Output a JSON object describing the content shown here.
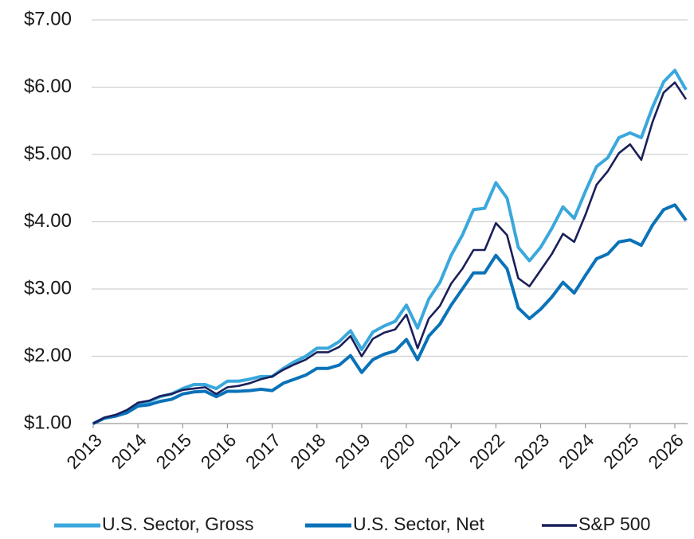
{
  "chart_data": {
    "type": "line",
    "x": [
      2013,
      2013.25,
      2013.5,
      2013.75,
      2014,
      2014.25,
      2014.5,
      2014.75,
      2015,
      2015.25,
      2015.5,
      2015.75,
      2016,
      2016.25,
      2016.5,
      2016.75,
      2017,
      2017.25,
      2017.5,
      2017.75,
      2018,
      2018.25,
      2018.5,
      2018.75,
      2019,
      2019.25,
      2019.5,
      2019.75,
      2020,
      2020.25,
      2020.5,
      2020.75,
      2021,
      2021.25,
      2021.5,
      2021.75,
      2022,
      2022.25,
      2022.5,
      2022.75,
      2023,
      2023.25,
      2023.5,
      2023.75,
      2024,
      2024.25,
      2024.5,
      2024.75,
      2025,
      2025.25,
      2025.5,
      2025.75,
      2026,
      2026.25
    ],
    "series": [
      {
        "name": "U.S. Sector, Gross",
        "color": "#3aa8dc",
        "width": 4,
        "values": [
          1.0,
          1.08,
          1.12,
          1.18,
          1.3,
          1.33,
          1.4,
          1.44,
          1.52,
          1.58,
          1.58,
          1.52,
          1.63,
          1.63,
          1.66,
          1.7,
          1.7,
          1.82,
          1.92,
          2.0,
          2.12,
          2.12,
          2.22,
          2.38,
          2.1,
          2.36,
          2.45,
          2.52,
          2.76,
          2.42,
          2.85,
          3.1,
          3.5,
          3.8,
          4.18,
          4.2,
          4.58,
          4.35,
          3.62,
          3.42,
          3.62,
          3.9,
          4.22,
          4.05,
          4.45,
          4.82,
          4.95,
          5.25,
          5.32,
          5.25,
          5.7,
          6.08,
          6.25,
          5.96
        ]
      },
      {
        "name": "U.S. Sector, Net",
        "color": "#0a72b8",
        "width": 4,
        "values": [
          1.0,
          1.08,
          1.11,
          1.16,
          1.26,
          1.28,
          1.33,
          1.36,
          1.44,
          1.47,
          1.48,
          1.4,
          1.48,
          1.48,
          1.49,
          1.51,
          1.49,
          1.6,
          1.66,
          1.72,
          1.82,
          1.82,
          1.87,
          2.01,
          1.76,
          1.95,
          2.03,
          2.08,
          2.25,
          1.95,
          2.3,
          2.48,
          2.76,
          3.0,
          3.24,
          3.24,
          3.5,
          3.3,
          2.72,
          2.56,
          2.7,
          2.88,
          3.1,
          2.94,
          3.2,
          3.45,
          3.52,
          3.7,
          3.73,
          3.65,
          3.95,
          4.18,
          4.25,
          4.02
        ]
      },
      {
        "name": "S&P 500",
        "color": "#1a1f5a",
        "width": 2.6,
        "values": [
          1.0,
          1.09,
          1.13,
          1.2,
          1.31,
          1.34,
          1.41,
          1.44,
          1.5,
          1.52,
          1.54,
          1.44,
          1.54,
          1.56,
          1.6,
          1.66,
          1.7,
          1.8,
          1.88,
          1.95,
          2.06,
          2.06,
          2.14,
          2.3,
          2.0,
          2.26,
          2.35,
          2.4,
          2.62,
          2.12,
          2.56,
          2.75,
          3.08,
          3.3,
          3.58,
          3.58,
          3.98,
          3.8,
          3.16,
          3.04,
          3.28,
          3.52,
          3.82,
          3.7,
          4.1,
          4.55,
          4.75,
          5.02,
          5.15,
          4.92,
          5.48,
          5.92,
          6.07,
          5.82
        ]
      }
    ],
    "xlim": [
      2013,
      2026.25
    ],
    "xticks": [
      2013,
      2014,
      2015,
      2016,
      2017,
      2018,
      2019,
      2020,
      2021,
      2022,
      2023,
      2024,
      2025,
      2026
    ],
    "ylim": [
      1,
      7
    ],
    "yticks": [
      {
        "value": 1,
        "label": "$1.00"
      },
      {
        "value": 2,
        "label": "$2.00"
      },
      {
        "value": 3,
        "label": "$3.00"
      },
      {
        "value": 4,
        "label": "$4.00"
      },
      {
        "value": 5,
        "label": "$5.00"
      },
      {
        "value": 6,
        "label": "$6.00"
      },
      {
        "value": 7,
        "label": "$7.00"
      }
    ],
    "grid": true,
    "legend": "bottom"
  }
}
